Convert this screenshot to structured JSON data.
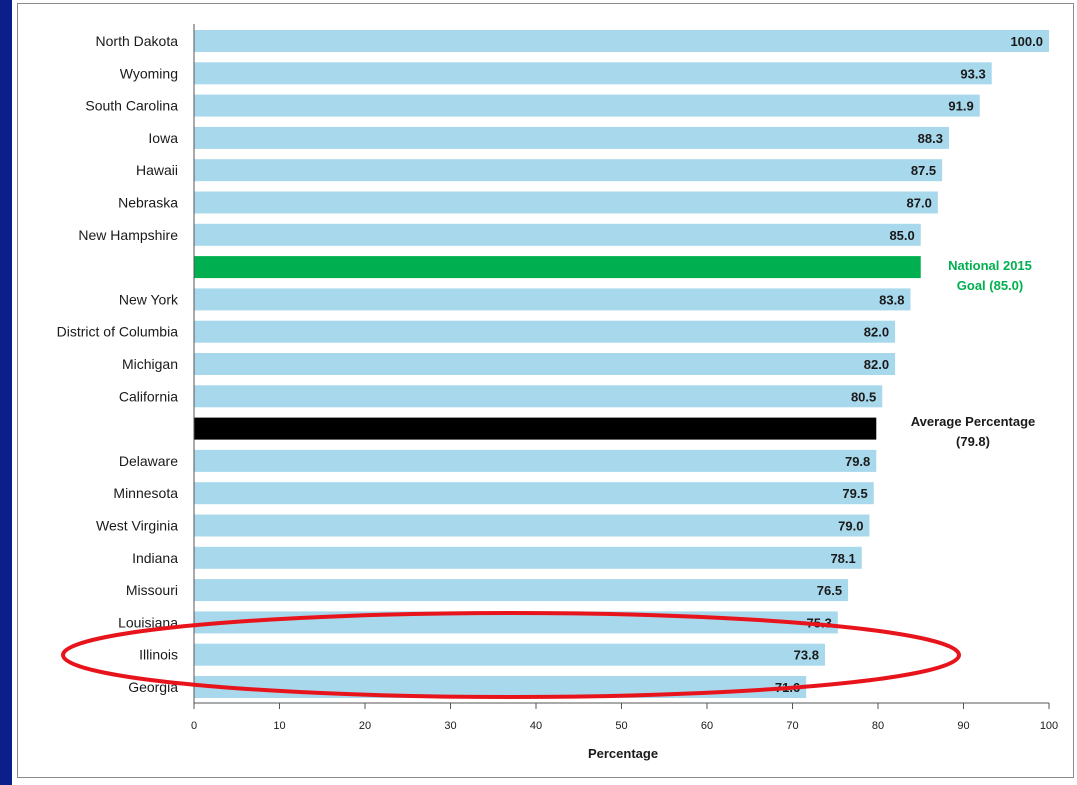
{
  "chart_data": {
    "type": "bar",
    "orientation": "horizontal",
    "title": "",
    "xlabel": "Percentage",
    "ylabel": "",
    "xlim": [
      0,
      100
    ],
    "xticks": [
      0,
      10,
      20,
      30,
      40,
      50,
      60,
      70,
      80,
      90,
      100
    ],
    "grid": false,
    "categories": [
      "North Dakota",
      "Wyoming",
      "South Carolina",
      "Iowa",
      "Hawaii",
      "Nebraska",
      "New Hampshire",
      "",
      "New York",
      "District of Columbia",
      "Michigan",
      "California",
      "",
      "Delaware",
      "Minnesota",
      "West Virginia",
      "Indiana",
      "Missouri",
      "Louisiana",
      "Illinois",
      "Georgia"
    ],
    "values": [
      100.0,
      93.3,
      91.9,
      88.3,
      87.5,
      87.0,
      85.0,
      85.0,
      83.8,
      82.0,
      82.0,
      80.5,
      79.8,
      79.8,
      79.5,
      79.0,
      78.1,
      76.5,
      75.3,
      73.8,
      71.6
    ],
    "value_labels": [
      "100.0",
      "93.3",
      "91.9",
      "88.3",
      "87.5",
      "87.0",
      "85.0",
      "",
      "83.8",
      "82.0",
      "82.0",
      "80.5",
      "",
      "79.8",
      "79.5",
      "79.0",
      "78.1",
      "76.5",
      "75.3",
      "73.8",
      "71.6"
    ],
    "bar_kinds": [
      "state",
      "state",
      "state",
      "state",
      "state",
      "state",
      "state",
      "goal",
      "state",
      "state",
      "state",
      "state",
      "average",
      "state",
      "state",
      "state",
      "state",
      "state",
      "state",
      "state",
      "state"
    ],
    "colors": {
      "state": "#a8d8ec",
      "goal": "#00b050",
      "average": "#000000",
      "highlight": "#e8141c"
    },
    "annotations": {
      "goal": [
        "National 2015",
        "Goal (85.0)"
      ],
      "average": [
        "Average Percentage",
        "(79.8)"
      ]
    },
    "highlighted_categories": [
      "Louisiana",
      "Illinois",
      "Georgia"
    ]
  }
}
